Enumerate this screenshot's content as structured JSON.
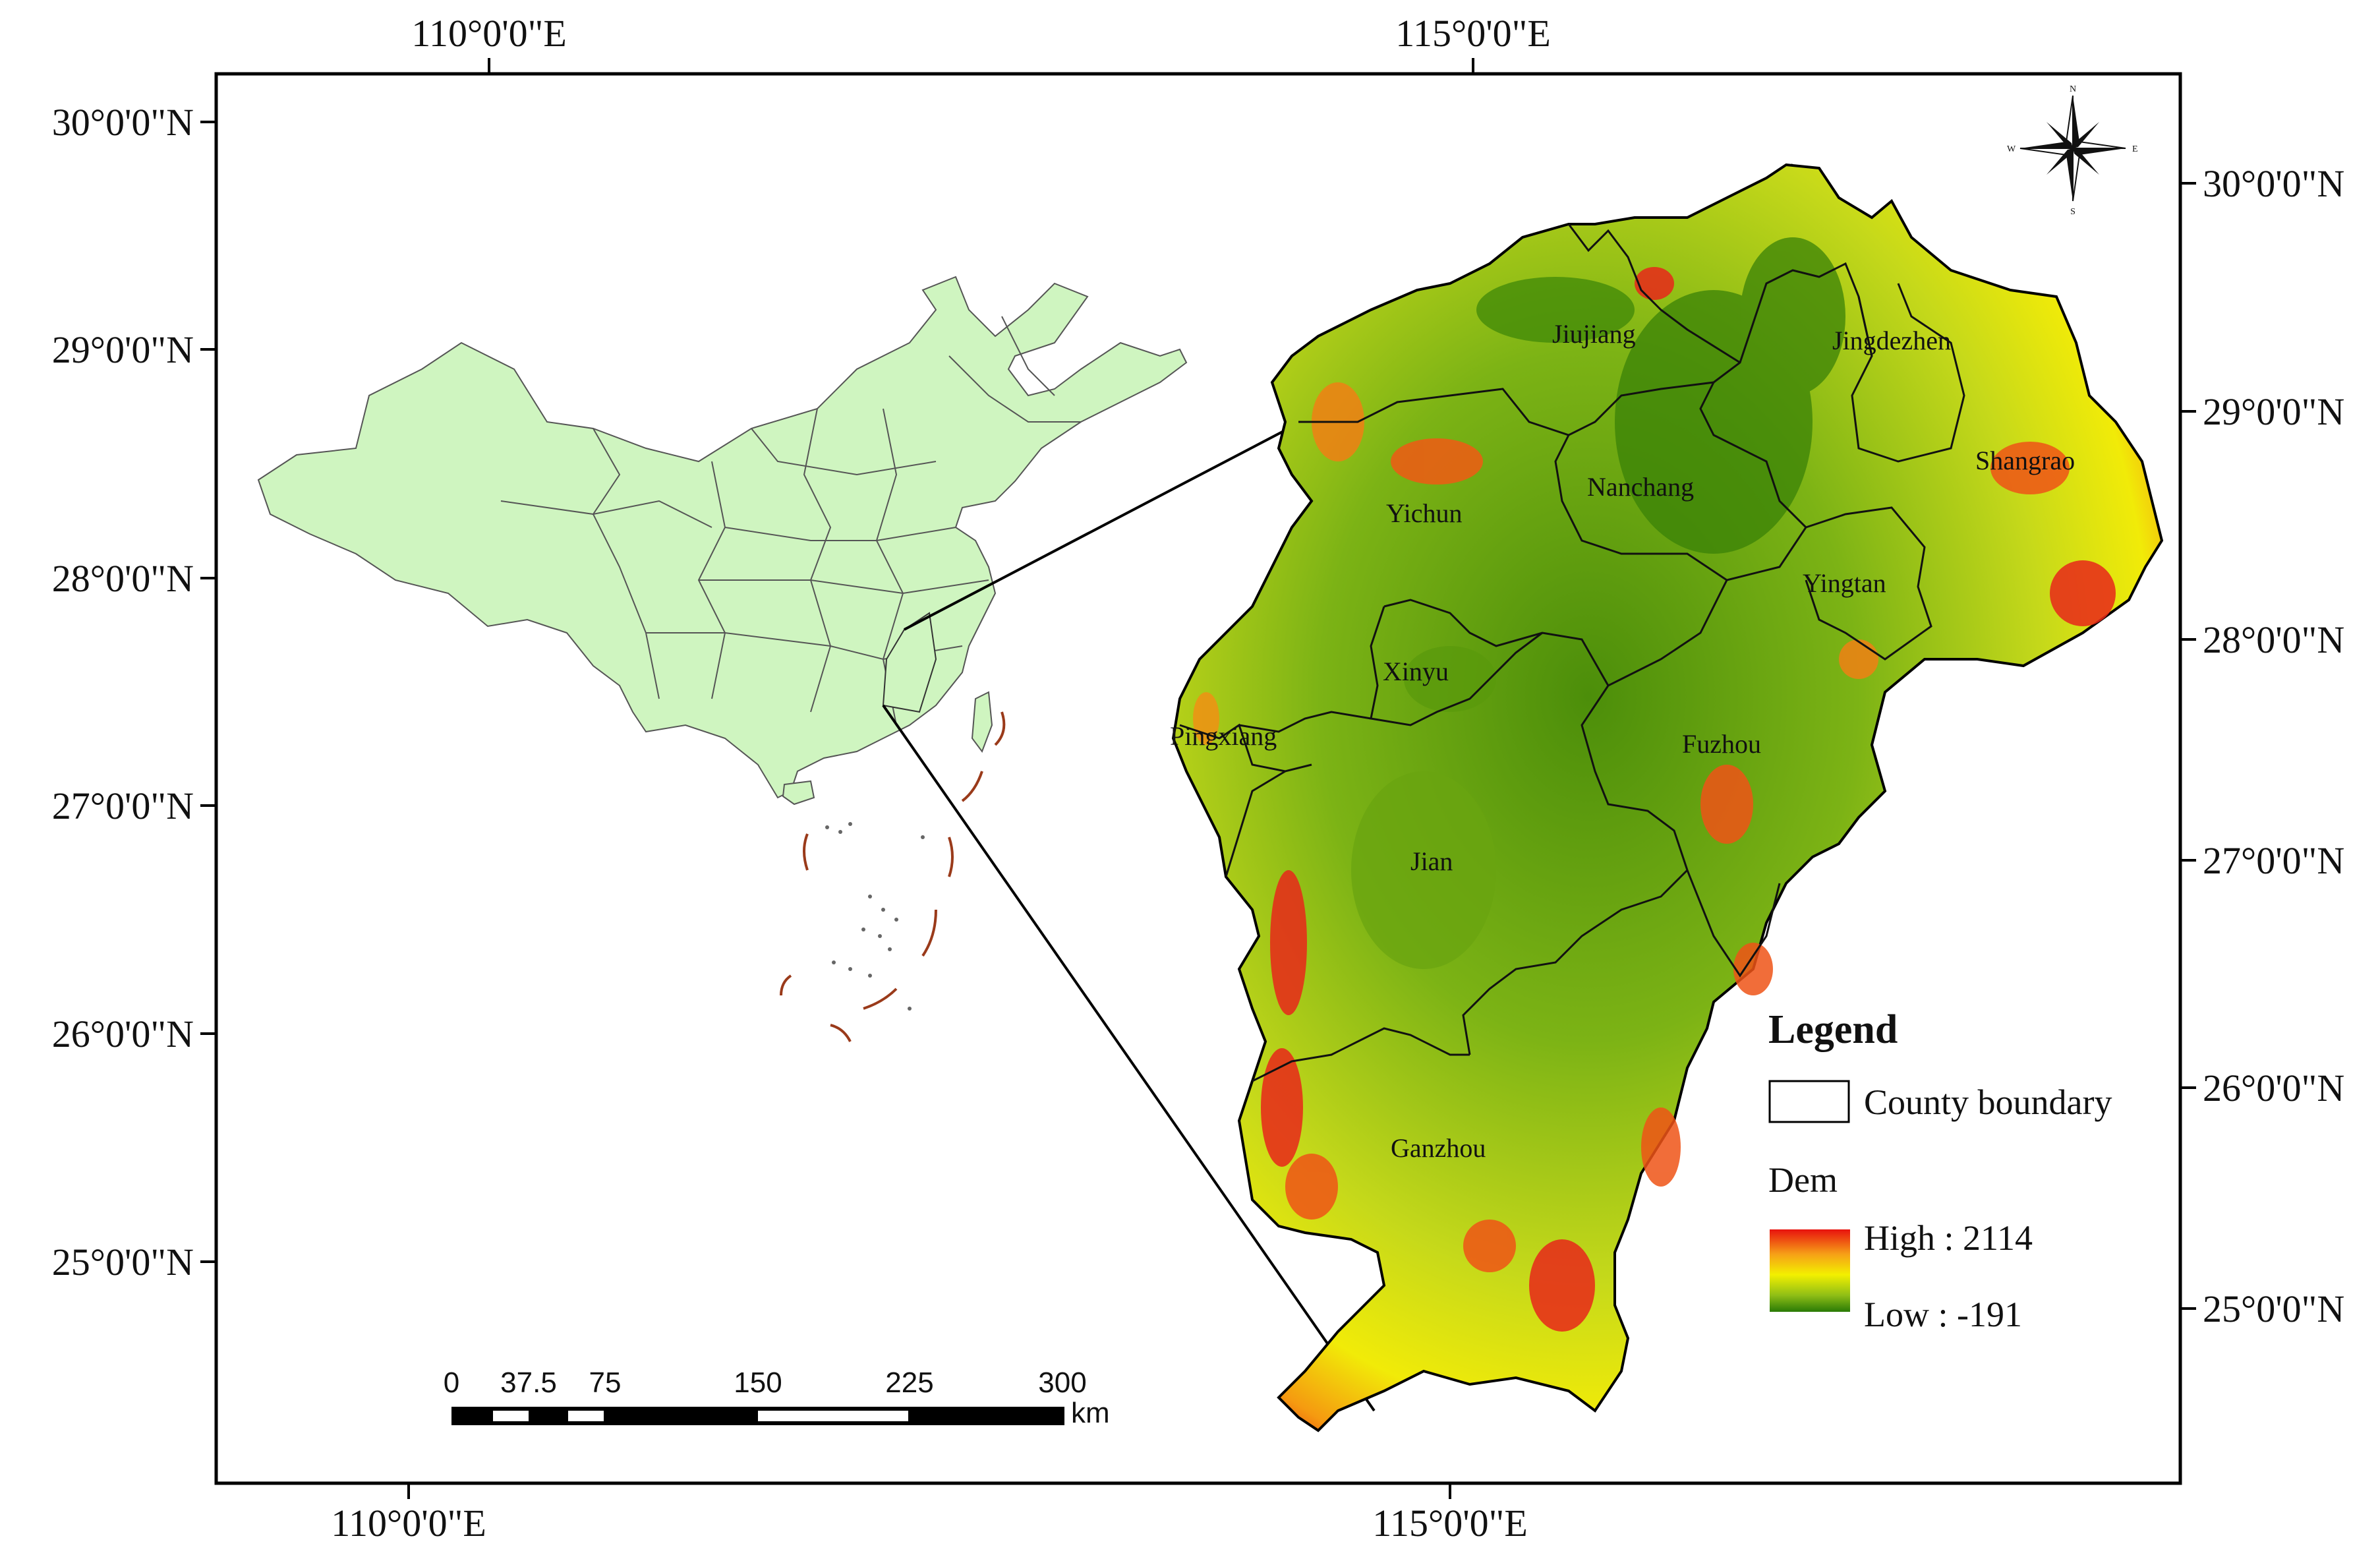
{
  "map": {
    "top_axis_labels": [
      "110°0'0\"E",
      "115°0'0\"E"
    ],
    "bottom_axis_labels": [
      "110°0'0\"E",
      "115°0'0\"E"
    ],
    "left_axis_labels": [
      "30°0'0\"N",
      "29°0'0\"N",
      "28°0'0\"N",
      "27°0'0\"N",
      "26°0'0\"N",
      "25°0'0\"N"
    ],
    "right_axis_labels": [
      "30°0'0\"N",
      "29°0'0\"N",
      "28°0'0\"N",
      "27°0'0\"N",
      "26°0'0\"N",
      "25°0'0\"N"
    ],
    "cities": [
      "Jiujiang",
      "Jingdezhen",
      "Shangrao",
      "Nanchang",
      "Yichun",
      "Yingtan",
      "Xinyu",
      "Pingxiang",
      "Fuzhou",
      "Jian",
      "Ganzhou"
    ]
  },
  "compass": {
    "n": "N",
    "s": "S",
    "e": "E",
    "w": "W"
  },
  "legend": {
    "title": "Legend",
    "boundary_label": "County boundary",
    "dem_label": "Dem",
    "high_label": "High : 2114",
    "low_label": "Low : -191"
  },
  "scale_bar": {
    "ticks": [
      "0",
      "37.5",
      "75",
      "150",
      "225",
      "300"
    ],
    "unit": "km"
  },
  "colors": {
    "china_fill": "#cff5c0",
    "dem_high": "#e8120e",
    "dem_mid": "#f3f000",
    "dem_low": "#2a7a06",
    "frame": "#000000"
  }
}
